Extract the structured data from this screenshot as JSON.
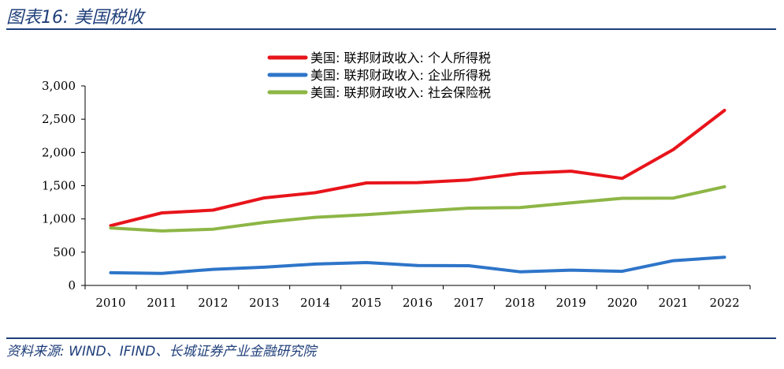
{
  "header": {
    "title": "图表16: 美国税收"
  },
  "footer": {
    "source": "资料来源: WIND、IFIND、长城证券产业金融研究院"
  },
  "chart_data": {
    "type": "line",
    "categories": [
      "2010",
      "2011",
      "2012",
      "2013",
      "2014",
      "2015",
      "2016",
      "2017",
      "2018",
      "2019",
      "2020",
      "2021",
      "2022"
    ],
    "ylim": [
      0,
      3000
    ],
    "yticks": [
      0,
      500,
      1000,
      1500,
      2000,
      2500,
      3000
    ],
    "ytick_labels": [
      "0",
      "500",
      "1,000",
      "1,500",
      "2,000",
      "2,500",
      "3,000"
    ],
    "legend_position": "top-center",
    "grid": false,
    "series": [
      {
        "name": "美国: 联邦财政收入: 个人所得税",
        "color": "#e8141b",
        "values": [
          899,
          1091,
          1132,
          1316,
          1395,
          1541,
          1546,
          1587,
          1684,
          1718,
          1609,
          2044,
          2632
        ]
      },
      {
        "name": "美国: 联邦财政收入: 企业所得税",
        "color": "#2e75c9",
        "values": [
          191,
          181,
          242,
          274,
          321,
          344,
          300,
          297,
          205,
          230,
          212,
          372,
          425
        ]
      },
      {
        "name": "美国: 联邦财政收入: 社会保险税",
        "color": "#8db646",
        "values": [
          865,
          819,
          845,
          948,
          1024,
          1065,
          1115,
          1162,
          1171,
          1243,
          1310,
          1314,
          1484
        ]
      }
    ]
  }
}
